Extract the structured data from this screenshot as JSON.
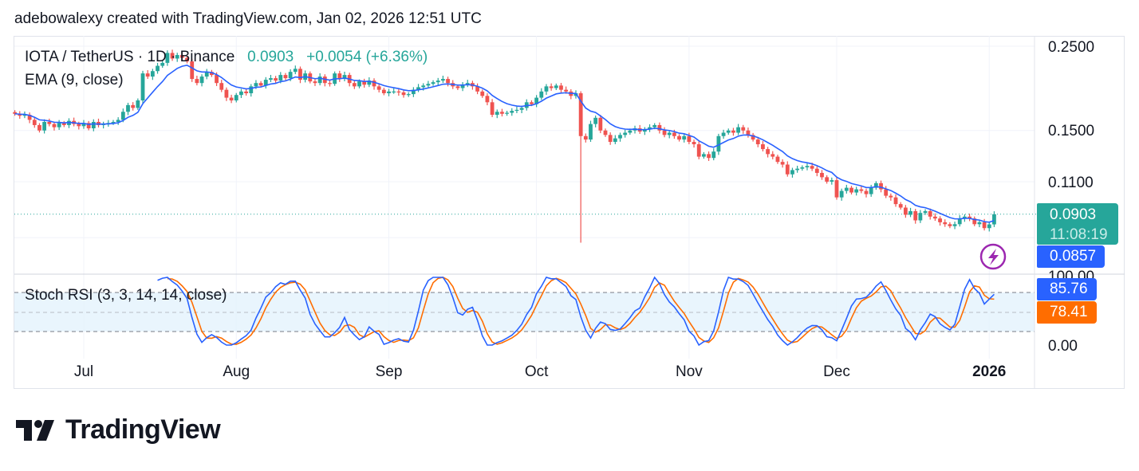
{
  "caption": "adebowalexy created with TradingView.com, Jan 02, 2026 12:51 UTC",
  "legend": {
    "symbol": "IOTA / TetherUS · 1D · Binance",
    "last": "0.0903",
    "change": "+0.0054 (+6.36%)",
    "ema": "EMA (9, close)",
    "stoch": "Stoch RSI (3, 3, 14, 14, close)"
  },
  "price_tags": {
    "last": "0.0903",
    "countdown": "11:08:19",
    "ema": "0.0857",
    "stoch_k": "85.76",
    "stoch_d": "78.41",
    "stoch_top": "100.00",
    "stoch_bottom": "0.00"
  },
  "logo": "TradingView",
  "colors": {
    "up": "#26a69a",
    "down": "#ef5350",
    "ema": "#2962ff",
    "stoch_k": "#2962ff",
    "stoch_d": "#ff6d00",
    "band": "#e3f2fd",
    "alert_icon": "#9c27b0"
  },
  "icons": [
    "lightning-alert-icon",
    "tradingview-logo-icon"
  ],
  "chart_data": {
    "type": "candlestick",
    "symbol": "IOTA/USDT",
    "interval": "1D",
    "price_scale": "log",
    "y_ticks": [
      "0.2500",
      "0.1500",
      "0.1100"
    ],
    "x_ticks": [
      "Jul",
      "Aug",
      "Sep",
      "Oct",
      "Nov",
      "Dec",
      "2026"
    ],
    "x_tick_dates": [
      "2025-07-01",
      "2025-08-01",
      "2025-09-01",
      "2025-10-01",
      "2025-11-01",
      "2025-12-01",
      "2026-01-01"
    ],
    "start_date": "2025-06-17",
    "end_date": "2026-01-02",
    "closes": [
      0.166,
      0.164,
      0.165,
      0.16,
      0.155,
      0.15,
      0.158,
      0.156,
      0.153,
      0.157,
      0.155,
      0.159,
      0.156,
      0.154,
      0.157,
      0.152,
      0.158,
      0.155,
      0.156,
      0.157,
      0.158,
      0.16,
      0.168,
      0.175,
      0.172,
      0.18,
      0.212,
      0.208,
      0.215,
      0.222,
      0.226,
      0.24,
      0.232,
      0.237,
      0.233,
      0.228,
      0.205,
      0.2,
      0.208,
      0.214,
      0.21,
      0.2,
      0.192,
      0.183,
      0.18,
      0.186,
      0.19,
      0.188,
      0.196,
      0.2,
      0.197,
      0.204,
      0.206,
      0.203,
      0.21,
      0.206,
      0.214,
      0.218,
      0.204,
      0.212,
      0.202,
      0.2,
      0.208,
      0.2,
      0.199,
      0.212,
      0.205,
      0.21,
      0.2,
      0.196,
      0.202,
      0.198,
      0.203,
      0.196,
      0.192,
      0.188,
      0.19,
      0.19,
      0.189,
      0.186,
      0.187,
      0.192,
      0.195,
      0.197,
      0.199,
      0.201,
      0.203,
      0.205,
      0.2,
      0.196,
      0.194,
      0.198,
      0.2,
      0.196,
      0.19,
      0.185,
      0.178,
      0.165,
      0.168,
      0.166,
      0.167,
      0.169,
      0.17,
      0.172,
      0.178,
      0.176,
      0.183,
      0.19,
      0.196,
      0.194,
      0.197,
      0.192,
      0.19,
      0.185,
      0.188,
      0.145,
      0.142,
      0.156,
      0.162,
      0.15,
      0.146,
      0.14,
      0.143,
      0.146,
      0.148,
      0.15,
      0.152,
      0.149,
      0.151,
      0.153,
      0.155,
      0.15,
      0.146,
      0.148,
      0.145,
      0.142,
      0.145,
      0.14,
      0.138,
      0.128,
      0.13,
      0.127,
      0.132,
      0.145,
      0.148,
      0.15,
      0.148,
      0.153,
      0.15,
      0.146,
      0.142,
      0.138,
      0.134,
      0.13,
      0.128,
      0.124,
      0.122,
      0.115,
      0.118,
      0.119,
      0.12,
      0.121,
      0.119,
      0.116,
      0.113,
      0.11,
      0.111,
      0.1,
      0.104,
      0.106,
      0.103,
      0.105,
      0.104,
      0.102,
      0.106,
      0.109,
      0.105,
      0.101,
      0.1,
      0.096,
      0.094,
      0.09,
      0.092,
      0.087,
      0.091,
      0.092,
      0.089,
      0.088,
      0.086,
      0.085,
      0.084,
      0.085,
      0.088,
      0.089,
      0.088,
      0.085,
      0.086,
      0.083,
      0.0849,
      0.0903
    ],
    "wick_extremes": [
      {
        "date": "2025-10-10",
        "low": 0.076
      }
    ],
    "ema_period": 9,
    "ema_last": 0.0857,
    "stoch_rsi": {
      "k_smooth": 3,
      "d_smooth": 3,
      "rsi_length": 14,
      "stoch_length": 14,
      "k_last": 85.76,
      "d_last": 78.41,
      "bands": [
        80,
        50,
        20
      ],
      "ylim": [
        0,
        100
      ]
    }
  }
}
